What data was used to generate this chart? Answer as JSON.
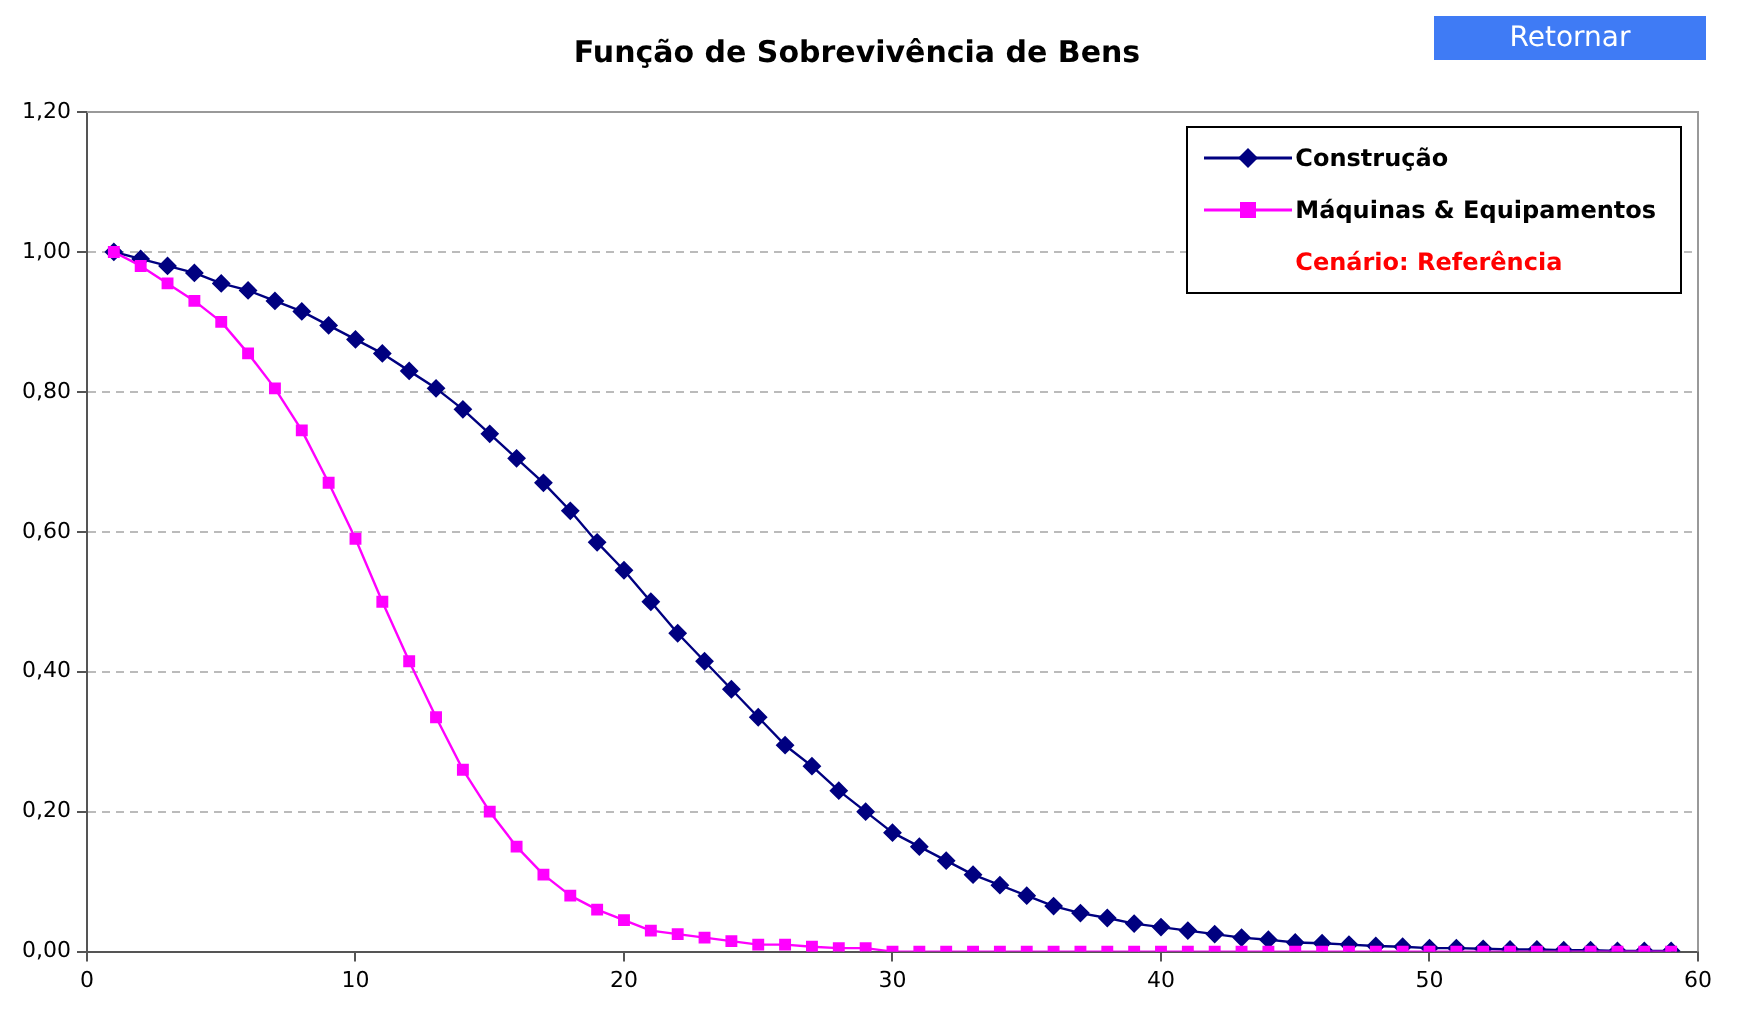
{
  "chart_data": {
    "type": "line",
    "title": "Função de Sobrevivência de Bens",
    "x": [
      1,
      2,
      3,
      4,
      5,
      6,
      7,
      8,
      9,
      10,
      11,
      12,
      13,
      14,
      15,
      16,
      17,
      18,
      19,
      20,
      21,
      22,
      23,
      24,
      25,
      26,
      27,
      28,
      29,
      30,
      31,
      32,
      33,
      34,
      35,
      36,
      37,
      38,
      39,
      40,
      41,
      42,
      43,
      44,
      45,
      46,
      47,
      48,
      49,
      50,
      51,
      52,
      53,
      54,
      55,
      56,
      57,
      58,
      59
    ],
    "series": [
      {
        "name": "Construção",
        "color": "#000080",
        "marker": "diamond",
        "values": [
          1.0,
          0.99,
          0.98,
          0.97,
          0.955,
          0.945,
          0.93,
          0.915,
          0.895,
          0.875,
          0.855,
          0.83,
          0.805,
          0.775,
          0.74,
          0.705,
          0.67,
          0.63,
          0.585,
          0.545,
          0.5,
          0.455,
          0.415,
          0.375,
          0.335,
          0.295,
          0.265,
          0.23,
          0.2,
          0.17,
          0.15,
          0.13,
          0.11,
          0.095,
          0.08,
          0.065,
          0.055,
          0.048,
          0.04,
          0.035,
          0.03,
          0.025,
          0.02,
          0.017,
          0.013,
          0.012,
          0.01,
          0.008,
          0.007,
          0.005,
          0.005,
          0.004,
          0.003,
          0.003,
          0.002,
          0.002,
          0.001,
          0.001,
          0.001
        ]
      },
      {
        "name": "Máquinas & Equipamentos",
        "color": "#ff00ff",
        "marker": "square",
        "values": [
          1.0,
          0.98,
          0.955,
          0.93,
          0.9,
          0.855,
          0.805,
          0.745,
          0.67,
          0.59,
          0.5,
          0.415,
          0.335,
          0.26,
          0.2,
          0.15,
          0.11,
          0.08,
          0.06,
          0.045,
          0.03,
          0.025,
          0.02,
          0.015,
          0.01,
          0.01,
          0.007,
          0.005,
          0.005,
          0,
          0,
          0,
          0,
          0,
          0,
          0,
          0,
          0,
          0,
          0,
          0,
          0,
          0,
          0,
          0,
          0,
          0,
          0,
          0,
          0,
          0,
          0,
          0,
          0,
          0,
          0,
          0,
          0,
          0
        ]
      }
    ],
    "xlim": [
      0,
      60
    ],
    "xticks": [
      0,
      10,
      20,
      30,
      40,
      50,
      60
    ],
    "ylim": [
      0,
      1.2
    ],
    "yticks": [
      {
        "value": 0,
        "label": "0,00"
      },
      {
        "value": 0.2,
        "label": "0,20"
      },
      {
        "value": 0.4,
        "label": "0,40"
      },
      {
        "value": 0.6,
        "label": "0,60"
      },
      {
        "value": 0.8,
        "label": "0,80"
      },
      {
        "value": 1,
        "label": "1,00"
      },
      {
        "value": 1.2,
        "label": "1,20"
      }
    ],
    "grid": "y",
    "legend": "top right",
    "line_style": "solid",
    "annotations": [
      "Retornar",
      "Cenário: Referência"
    ]
  }
}
